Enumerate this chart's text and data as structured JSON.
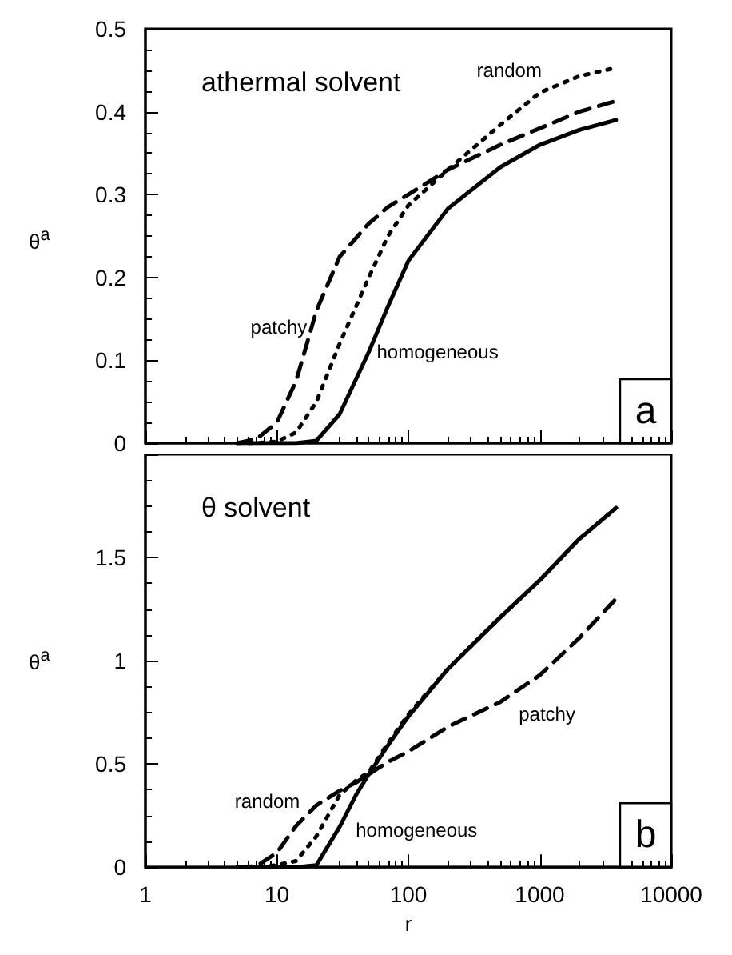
{
  "chart_data": [
    {
      "type": "line",
      "title": "athermal solvent",
      "ylabel": "θ$^{a}$",
      "x": [
        5,
        7,
        10,
        14,
        20,
        30,
        50,
        70,
        100,
        200,
        500,
        1000,
        2000,
        3800
      ],
      "xlim": [
        1,
        10000
      ],
      "xticks": [
        1,
        10,
        100,
        1000,
        10000
      ],
      "log": "x",
      "ylim": [
        0,
        0.5
      ],
      "yticks": [
        0,
        0.1,
        0.2,
        0.3,
        0.4,
        0.5
      ],
      "tick_labels": "y",
      "grid": false,
      "marker": "none",
      "series": [
        {
          "color": "#000000",
          "line_style": "dashed",
          "values": [
            0,
            0.005,
            0.025,
            0.075,
            0.16,
            0.225,
            0.265,
            0.285,
            0.3,
            0.33,
            0.36,
            0.38,
            0.4,
            0.413
          ]
        },
        {
          "color": "#000000",
          "line_style": "dotted",
          "values": [
            0,
            0,
            0.002,
            0.013,
            0.05,
            0.12,
            0.2,
            0.25,
            0.287,
            0.33,
            0.384,
            0.423,
            0.443,
            0.453
          ]
        },
        {
          "color": "#000000",
          "line_style": "solid",
          "values": [
            0,
            0,
            0,
            0,
            0.003,
            0.035,
            0.11,
            0.165,
            0.22,
            0.283,
            0.333,
            0.36,
            0.378,
            0.39
          ]
        }
      ],
      "annotations": [
        "random",
        "patchy",
        "homogeneous",
        "a"
      ]
    },
    {
      "type": "line",
      "title": "θ solvent",
      "xlabel": "r",
      "ylabel": "θ$^{a}$",
      "x": [
        5,
        7,
        10,
        14,
        20,
        30,
        40,
        50,
        70,
        100,
        200,
        500,
        1000,
        2000,
        3800
      ],
      "xlim": [
        1,
        10000
      ],
      "xticks": [
        1,
        10,
        100,
        1000,
        10000
      ],
      "log": "x",
      "ylim": [
        0,
        2
      ],
      "yticks": [
        0,
        0.5,
        1,
        1.5,
        {
          "value": 2,
          "label": null
        }
      ],
      "grid": false,
      "marker": "none",
      "series": [
        {
          "color": "#000000",
          "line_style": "dashed",
          "values": [
            0,
            0.005,
            0.07,
            0.2,
            0.3,
            0.37,
            0.41,
            0.45,
            0.51,
            0.56,
            0.68,
            0.8,
            0.93,
            1.11,
            1.3
          ]
        },
        {
          "color": "#000000",
          "line_style": "dotted",
          "values": [
            0,
            0,
            0.01,
            0.03,
            0.15,
            0.35,
            0.42,
            0.46,
            0.6,
            0.74,
            0.96,
            1.21,
            1.39,
            1.59,
            1.74
          ]
        },
        {
          "color": "#000000",
          "line_style": "solid",
          "values": [
            0,
            0,
            0,
            0,
            0.01,
            0.195,
            0.35,
            0.45,
            0.59,
            0.73,
            0.96,
            1.21,
            1.39,
            1.59,
            1.74
          ]
        }
      ],
      "annotations": [
        "patchy",
        "random",
        "homogeneous",
        "b"
      ]
    }
  ]
}
